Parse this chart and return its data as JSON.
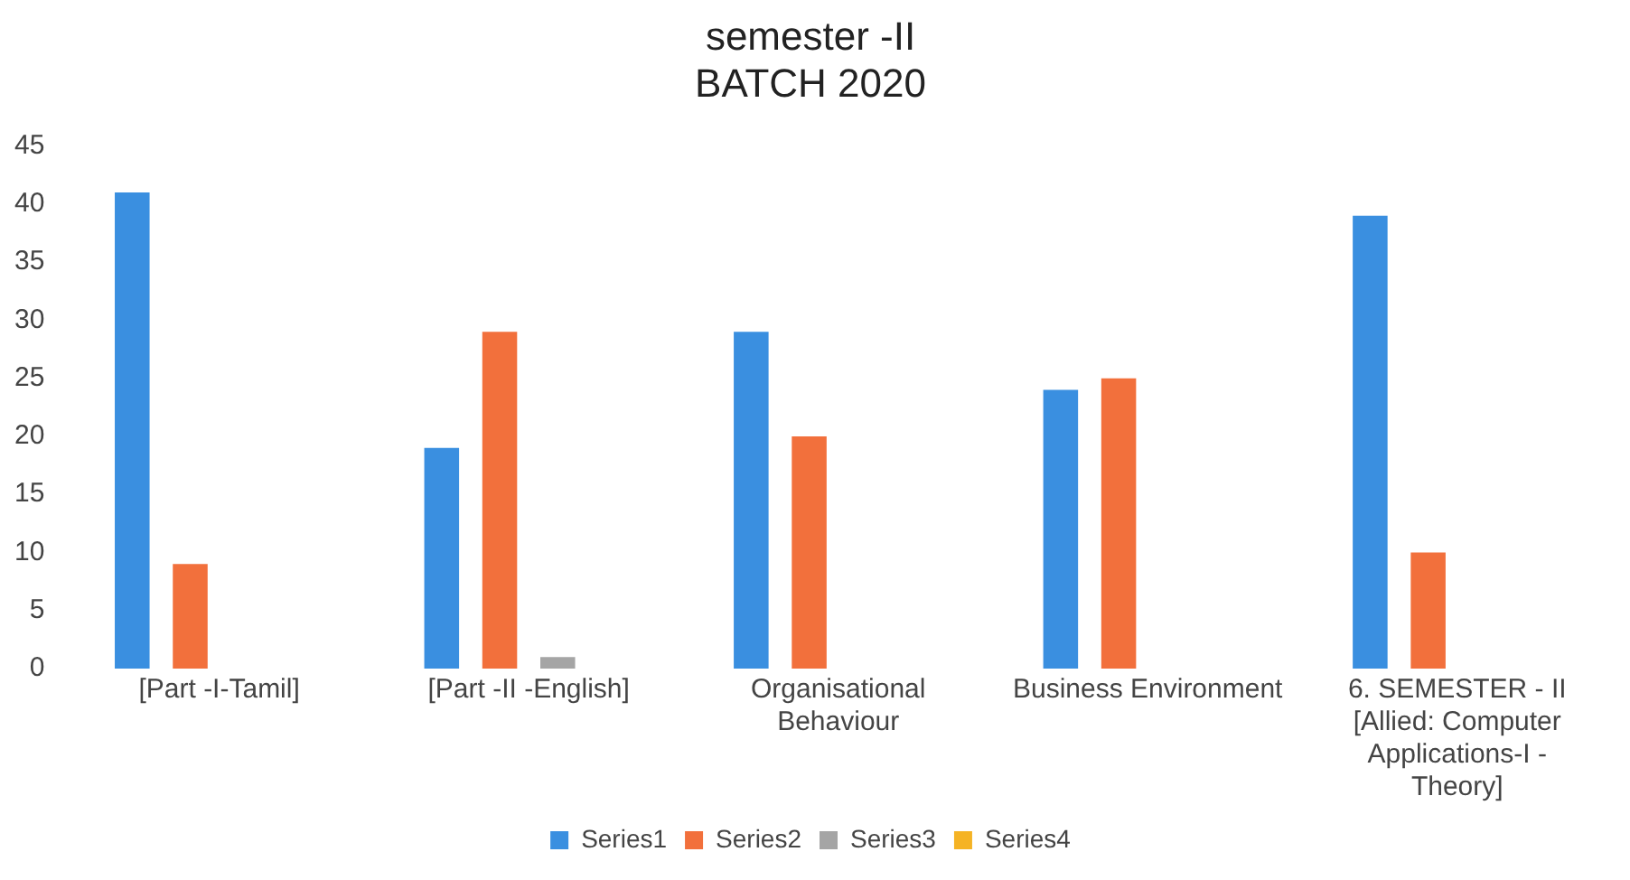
{
  "chart_data": {
    "type": "bar",
    "title": "semester -II\nBATCH 2020",
    "categories": [
      "[Part -I-Tamil]",
      "[Part -II -English]",
      "Organisational Behaviour",
      "Business Environment",
      "6. SEMESTER - II [Allied: Computer Applications-I - Theory]"
    ],
    "series": [
      {
        "name": "Series1",
        "color": "#3a8fe0",
        "values": [
          41,
          19,
          29,
          24,
          39
        ]
      },
      {
        "name": "Series2",
        "color": "#f2703c",
        "values": [
          9,
          29,
          20,
          25,
          10
        ]
      },
      {
        "name": "Series3",
        "color": "#a5a5a5",
        "values": [
          0,
          1,
          0,
          0,
          0
        ]
      },
      {
        "name": "Series4",
        "color": "#f5b324",
        "values": [
          0,
          0,
          0,
          0,
          0
        ]
      }
    ],
    "ylim": [
      0,
      45
    ],
    "yticks": [
      0,
      5,
      10,
      15,
      20,
      25,
      30,
      35,
      40,
      45
    ],
    "grid": false,
    "legend": "bottom"
  }
}
